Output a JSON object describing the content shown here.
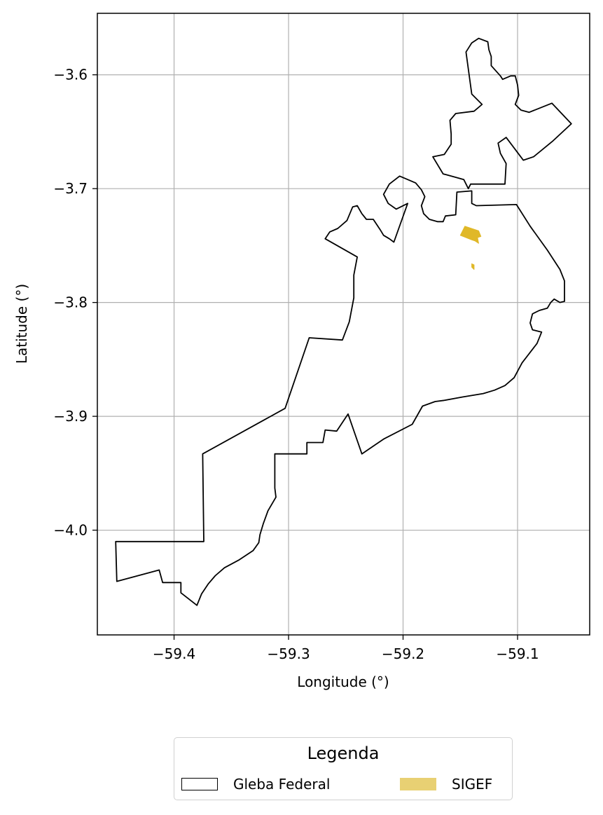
{
  "chart_data": {
    "type": "map",
    "xlabel": "Longitude (°)",
    "ylabel": "Latitude (°)",
    "xlim": [
      -59.467,
      -59.037
    ],
    "ylim": [
      -4.092,
      -3.546
    ],
    "xticks": [
      {
        "value": -59.4,
        "label": "−59.4"
      },
      {
        "value": -59.3,
        "label": "−59.3"
      },
      {
        "value": -59.2,
        "label": "−59.2"
      },
      {
        "value": -59.1,
        "label": "−59.1"
      }
    ],
    "yticks": [
      {
        "value": -3.6,
        "label": "−3.6"
      },
      {
        "value": -3.7,
        "label": "−3.7"
      },
      {
        "value": -3.8,
        "label": "−3.8"
      },
      {
        "value": -3.9,
        "label": "−3.9"
      },
      {
        "value": -4.0,
        "label": "−4.0"
      }
    ],
    "grid": true,
    "legend_position": "bottom-center",
    "layers": [
      {
        "name": "Gleba Federal",
        "style": "outline",
        "color": "#000000",
        "coordinates": [
          [
            -59.451,
            -4.01
          ],
          [
            -59.374,
            -4.01
          ],
          [
            -59.375,
            -3.933
          ],
          [
            -59.303,
            -3.893
          ],
          [
            -59.282,
            -3.831
          ],
          [
            -59.253,
            -3.833
          ],
          [
            -59.247,
            -3.817
          ],
          [
            -59.243,
            -3.796
          ],
          [
            -59.243,
            -3.776
          ],
          [
            -59.24,
            -3.76
          ],
          [
            -59.268,
            -3.744
          ],
          [
            -59.264,
            -3.738
          ],
          [
            -59.257,
            -3.735
          ],
          [
            -59.249,
            -3.728
          ],
          [
            -59.244,
            -3.716
          ],
          [
            -59.24,
            -3.715
          ],
          [
            -59.236,
            -3.722
          ],
          [
            -59.232,
            -3.727
          ],
          [
            -59.226,
            -3.727
          ],
          [
            -59.22,
            -3.736
          ],
          [
            -59.217,
            -3.741
          ],
          [
            -59.212,
            -3.744
          ],
          [
            -59.208,
            -3.747
          ],
          [
            -59.196,
            -3.713
          ],
          [
            -59.206,
            -3.718
          ],
          [
            -59.213,
            -3.713
          ],
          [
            -59.217,
            -3.705
          ],
          [
            -59.212,
            -3.696
          ],
          [
            -59.203,
            -3.689
          ],
          [
            -59.196,
            -3.692
          ],
          [
            -59.189,
            -3.695
          ],
          [
            -59.184,
            -3.701
          ],
          [
            -59.181,
            -3.707
          ],
          [
            -59.184,
            -3.715
          ],
          [
            -59.182,
            -3.722
          ],
          [
            -59.177,
            -3.727
          ],
          [
            -59.17,
            -3.729
          ],
          [
            -59.165,
            -3.729
          ],
          [
            -59.163,
            -3.724
          ],
          [
            -59.154,
            -3.723
          ],
          [
            -59.153,
            -3.703
          ],
          [
            -59.14,
            -3.702
          ],
          [
            -59.14,
            -3.713
          ],
          [
            -59.136,
            -3.715
          ],
          [
            -59.101,
            -3.714
          ],
          [
            -59.089,
            -3.733
          ],
          [
            -59.074,
            -3.754
          ],
          [
            -59.063,
            -3.771
          ],
          [
            -59.059,
            -3.781
          ],
          [
            -59.059,
            -3.79
          ],
          [
            -59.059,
            -3.799
          ],
          [
            -59.063,
            -3.8
          ],
          [
            -59.068,
            -3.797
          ],
          [
            -59.071,
            -3.8
          ],
          [
            -59.074,
            -3.805
          ],
          [
            -59.081,
            -3.807
          ],
          [
            -59.087,
            -3.81
          ],
          [
            -59.089,
            -3.818
          ],
          [
            -59.087,
            -3.824
          ],
          [
            -59.079,
            -3.826
          ],
          [
            -59.083,
            -3.836
          ],
          [
            -59.096,
            -3.853
          ],
          [
            -59.103,
            -3.866
          ],
          [
            -59.111,
            -3.873
          ],
          [
            -59.12,
            -3.877
          ],
          [
            -59.13,
            -3.88
          ],
          [
            -59.148,
            -3.883
          ],
          [
            -59.164,
            -3.886
          ],
          [
            -59.172,
            -3.887
          ],
          [
            -59.183,
            -3.891
          ],
          [
            -59.192,
            -3.907
          ],
          [
            -59.217,
            -3.92
          ],
          [
            -59.236,
            -3.933
          ],
          [
            -59.248,
            -3.898
          ],
          [
            -59.258,
            -3.913
          ],
          [
            -59.268,
            -3.912
          ],
          [
            -59.27,
            -3.923
          ],
          [
            -59.284,
            -3.923
          ],
          [
            -59.284,
            -3.933
          ],
          [
            -59.312,
            -3.933
          ],
          [
            -59.312,
            -3.963
          ],
          [
            -59.311,
            -3.971
          ],
          [
            -59.318,
            -3.983
          ],
          [
            -59.322,
            -3.994
          ],
          [
            -59.325,
            -4.004
          ],
          [
            -59.326,
            -4.011
          ],
          [
            -59.331,
            -4.018
          ],
          [
            -59.343,
            -4.026
          ],
          [
            -59.356,
            -4.033
          ],
          [
            -59.364,
            -4.04
          ],
          [
            -59.37,
            -4.047
          ],
          [
            -59.376,
            -4.056
          ],
          [
            -59.38,
            -4.066
          ],
          [
            -59.394,
            -4.055
          ],
          [
            -59.394,
            -4.046
          ],
          [
            -59.41,
            -4.046
          ],
          [
            -59.413,
            -4.035
          ],
          [
            -59.45,
            -4.045
          ],
          [
            -59.451,
            -4.01
          ]
        ]
      },
      {
        "name": "Gleba Federal",
        "style": "outline",
        "color": "#000000",
        "coordinates": [
          [
            -59.141,
            -3.696
          ],
          [
            -59.111,
            -3.696
          ],
          [
            -59.11,
            -3.678
          ],
          [
            -59.115,
            -3.669
          ],
          [
            -59.117,
            -3.66
          ],
          [
            -59.11,
            -3.655
          ],
          [
            -59.095,
            -3.675
          ],
          [
            -59.086,
            -3.672
          ],
          [
            -59.069,
            -3.658
          ],
          [
            -59.053,
            -3.643
          ],
          [
            -59.07,
            -3.625
          ],
          [
            -59.09,
            -3.633
          ],
          [
            -59.097,
            -3.631
          ],
          [
            -59.102,
            -3.626
          ],
          [
            -59.099,
            -3.618
          ],
          [
            -59.1,
            -3.609
          ],
          [
            -59.102,
            -3.601
          ],
          [
            -59.106,
            -3.601
          ],
          [
            -59.113,
            -3.604
          ],
          [
            -59.115,
            -3.601
          ],
          [
            -59.123,
            -3.592
          ],
          [
            -59.123,
            -3.584
          ],
          [
            -59.125,
            -3.578
          ],
          [
            -59.126,
            -3.571
          ],
          [
            -59.134,
            -3.568
          ],
          [
            -59.14,
            -3.572
          ],
          [
            -59.145,
            -3.58
          ],
          [
            -59.14,
            -3.617
          ],
          [
            -59.131,
            -3.626
          ],
          [
            -59.138,
            -3.632
          ],
          [
            -59.154,
            -3.634
          ],
          [
            -59.159,
            -3.64
          ],
          [
            -59.158,
            -3.652
          ],
          [
            -59.158,
            -3.661
          ],
          [
            -59.164,
            -3.67
          ],
          [
            -59.174,
            -3.672
          ],
          [
            -59.165,
            -3.687
          ],
          [
            -59.147,
            -3.692
          ],
          [
            -59.143,
            -3.7
          ],
          [
            -59.141,
            -3.696
          ]
        ]
      },
      {
        "name": "SIGEF",
        "style": "fill",
        "color": "#e0b828",
        "coordinates": [
          [
            -59.15,
            -3.741
          ],
          [
            -59.146,
            -3.733
          ],
          [
            -59.134,
            -3.737
          ],
          [
            -59.132,
            -3.742
          ],
          [
            -59.135,
            -3.743
          ],
          [
            -59.134,
            -3.748
          ],
          [
            -59.137,
            -3.746
          ],
          [
            -59.14,
            -3.745
          ],
          [
            -59.15,
            -3.741
          ]
        ]
      },
      {
        "name": "SIGEF",
        "style": "fill",
        "color": "#e0b828",
        "coordinates": [
          [
            -59.14,
            -3.766
          ],
          [
            -59.138,
            -3.767
          ],
          [
            -59.138,
            -3.771
          ],
          [
            -59.14,
            -3.769
          ],
          [
            -59.14,
            -3.766
          ]
        ]
      }
    ],
    "legend": {
      "title": "Legenda",
      "entries": [
        {
          "label": "Gleba Federal",
          "swatch": "outline",
          "color": "#000000"
        },
        {
          "label": "SIGEF",
          "swatch": "fill",
          "color": "#e8d073"
        }
      ]
    }
  }
}
